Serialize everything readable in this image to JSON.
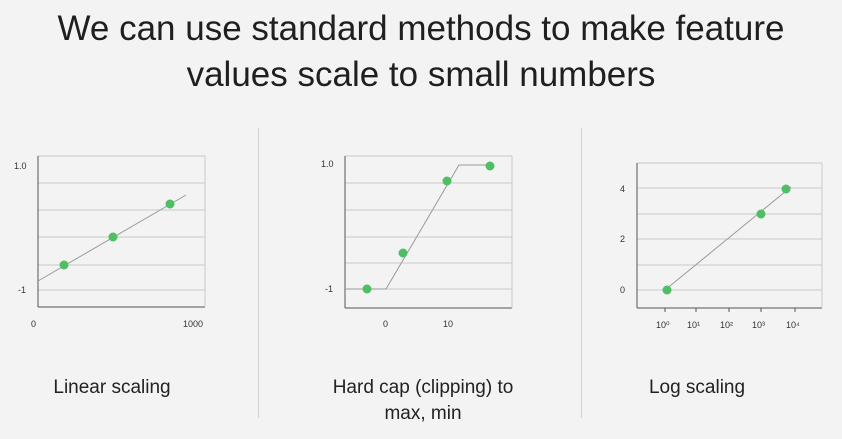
{
  "slide": {
    "title_line1": "We can use standard methods to make feature",
    "title_line2": "values scale to small numbers"
  },
  "captions": {
    "linear": "Linear scaling",
    "clip_line1": "Hard cap (clipping) to",
    "clip_line2": "max, min",
    "log": "Log scaling"
  },
  "colors": {
    "point": "#4fbf63",
    "line": "#9a9a9a",
    "grid": "#c8c8c8",
    "axis": "#555555"
  },
  "chart_data": [
    {
      "name": "linear-scaling",
      "type": "line",
      "xlim": [
        0,
        1000
      ],
      "ylim": [
        -1,
        1
      ],
      "x_ticks": [
        "0",
        "1000"
      ],
      "y_ticks": [
        "1.0",
        "-1"
      ],
      "points": [
        {
          "x": 180,
          "y": -0.7
        },
        {
          "x": 480,
          "y": -0.1
        },
        {
          "x": 820,
          "y": 0.52
        }
      ],
      "line": [
        [
          -30,
          -1.0
        ],
        [
          920,
          0.66
        ]
      ]
    },
    {
      "name": "hard-cap-clipping",
      "type": "line",
      "xlim": [
        -5,
        20
      ],
      "ylim": [
        -1,
        1
      ],
      "x_ticks": [
        "0",
        "10"
      ],
      "y_ticks": [
        "1.0",
        "-1"
      ],
      "points": [
        {
          "x": -3,
          "y": -1
        },
        {
          "x": 3,
          "y": -0.3
        },
        {
          "x": 10,
          "y": 0.7
        },
        {
          "x": 16,
          "y": 1.0
        }
      ],
      "line": [
        [
          -5,
          -1
        ],
        [
          0,
          -1
        ],
        [
          12,
          1
        ],
        [
          17,
          1
        ]
      ]
    },
    {
      "name": "log-scaling",
      "type": "line",
      "xlim": [
        "10⁰",
        "10⁴"
      ],
      "ylim": [
        0,
        4
      ],
      "x_ticks": [
        "10⁰",
        "10¹",
        "10²",
        "10³",
        "10⁴"
      ],
      "y_ticks": [
        "4",
        "2",
        "0"
      ],
      "points": [
        {
          "x": "10⁰",
          "y": 0
        },
        {
          "x": "10³",
          "y": 3
        },
        {
          "x": "10⁴",
          "y": 4
        }
      ],
      "line": [
        [
          "10⁰",
          0
        ],
        [
          "10⁴",
          4
        ]
      ]
    }
  ]
}
